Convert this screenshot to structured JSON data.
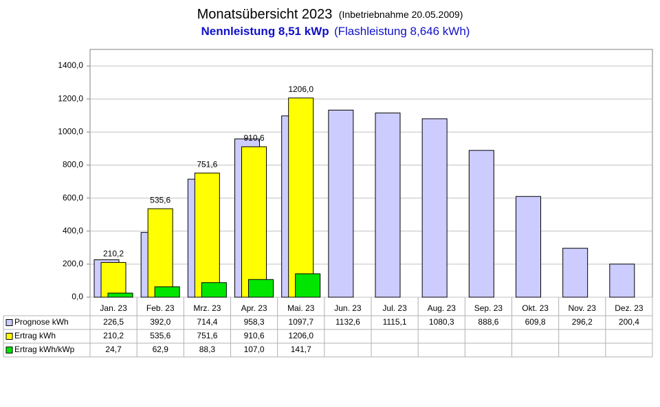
{
  "chart_data": {
    "type": "bar",
    "title": "Monatsübersicht 2023",
    "commissioning": "(Inbetriebnahme  20.05.2009)",
    "rated_power": "Nennleistung 8,51 kWp",
    "flash_power": "(Flashleistung 8,646 kWh)",
    "categories": [
      "Jan. 23",
      "Feb. 23",
      "Mrz. 23",
      "Apr. 23",
      "Mai. 23",
      "Jun. 23",
      "Jul. 23",
      "Aug. 23",
      "Sep. 23",
      "Okt. 23",
      "Nov. 23",
      "Dez. 23"
    ],
    "series": [
      {
        "name": "Prognose kWh",
        "color": "#ccccff",
        "values": [
          226.5,
          392.0,
          714.4,
          958.3,
          1097.7,
          1132.6,
          1115.1,
          1080.3,
          888.6,
          609.8,
          296.2,
          200.4
        ],
        "value_labels": [
          "226,5",
          "392,0",
          "714,4",
          "958,3",
          "1097,7",
          "1132,6",
          "1115,1",
          "1080,3",
          "888,6",
          "609,8",
          "296,2",
          "200,4"
        ]
      },
      {
        "name": "Ertrag kWh",
        "color": "#ffff00",
        "values": [
          210.2,
          535.6,
          751.6,
          910.6,
          1206.0,
          null,
          null,
          null,
          null,
          null,
          null,
          null
        ],
        "value_labels": [
          "210,2",
          "535,6",
          "751,6",
          "910,6",
          "1206,0",
          null,
          null,
          null,
          null,
          null,
          null,
          null
        ]
      },
      {
        "name": "Ertrag kWh/kWp",
        "color": "#00e600",
        "values": [
          24.7,
          62.9,
          88.3,
          107.0,
          141.7,
          null,
          null,
          null,
          null,
          null,
          null,
          null
        ],
        "value_labels": [
          "24,7",
          "62,9",
          "88,3",
          "107,0",
          "141,7",
          null,
          null,
          null,
          null,
          null,
          null,
          null
        ]
      }
    ],
    "ylim": [
      0,
      1500
    ],
    "yticks": [
      {
        "value": 0,
        "label": "0,0"
      },
      {
        "value": 200,
        "label": "200,0"
      },
      {
        "value": 400,
        "label": "400,0"
      },
      {
        "value": 600,
        "label": "600,0"
      },
      {
        "value": 800,
        "label": "800,0"
      },
      {
        "value": 1000,
        "label": "1000,0"
      },
      {
        "value": 1200,
        "label": "1200,0"
      },
      {
        "value": 1400,
        "label": "1400,0"
      }
    ],
    "grid": true,
    "data_label_series": 1
  }
}
